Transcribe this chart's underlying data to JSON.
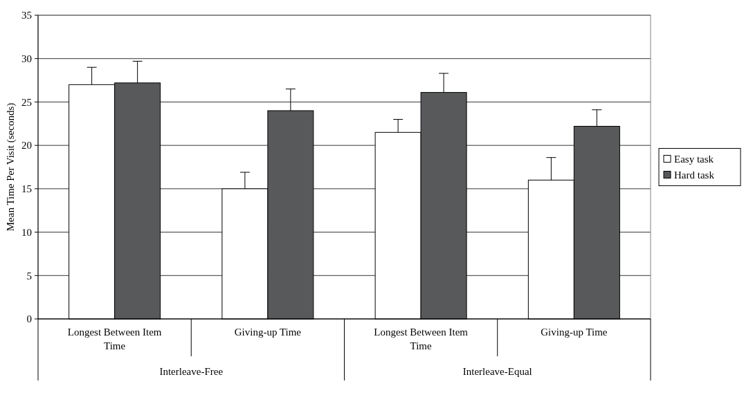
{
  "chart_data": {
    "type": "bar",
    "ylabel": "Mean Time Per Visit (seconds)",
    "categories": [
      "Longest Between Item Time",
      "Giving-up Time",
      "Longest Between Item Time",
      "Giving-up Time"
    ],
    "series": [
      {
        "name": "Easy task",
        "color": "#ffffff",
        "values": [
          27,
          15,
          21.5,
          16
        ],
        "errors": [
          [
            27,
            29
          ],
          [
            15,
            16.9
          ],
          [
            21.5,
            23
          ],
          [
            16,
            18.6
          ]
        ]
      },
      {
        "name": "Hard task",
        "color": "#58595b",
        "values": [
          27.2,
          24,
          26.1,
          22.2
        ],
        "errors": [
          [
            27.2,
            29.7
          ],
          [
            24,
            26.5
          ],
          [
            26.1,
            28.3
          ],
          [
            22.2,
            24.1
          ]
        ]
      }
    ],
    "annotations": [
      "Interleave-Free",
      "Interleave-Equal"
    ],
    "ylim": [
      0,
      35
    ],
    "yticks": [
      0,
      5,
      10,
      15,
      20,
      25,
      30,
      35
    ],
    "grid": "y",
    "legend": "right"
  }
}
